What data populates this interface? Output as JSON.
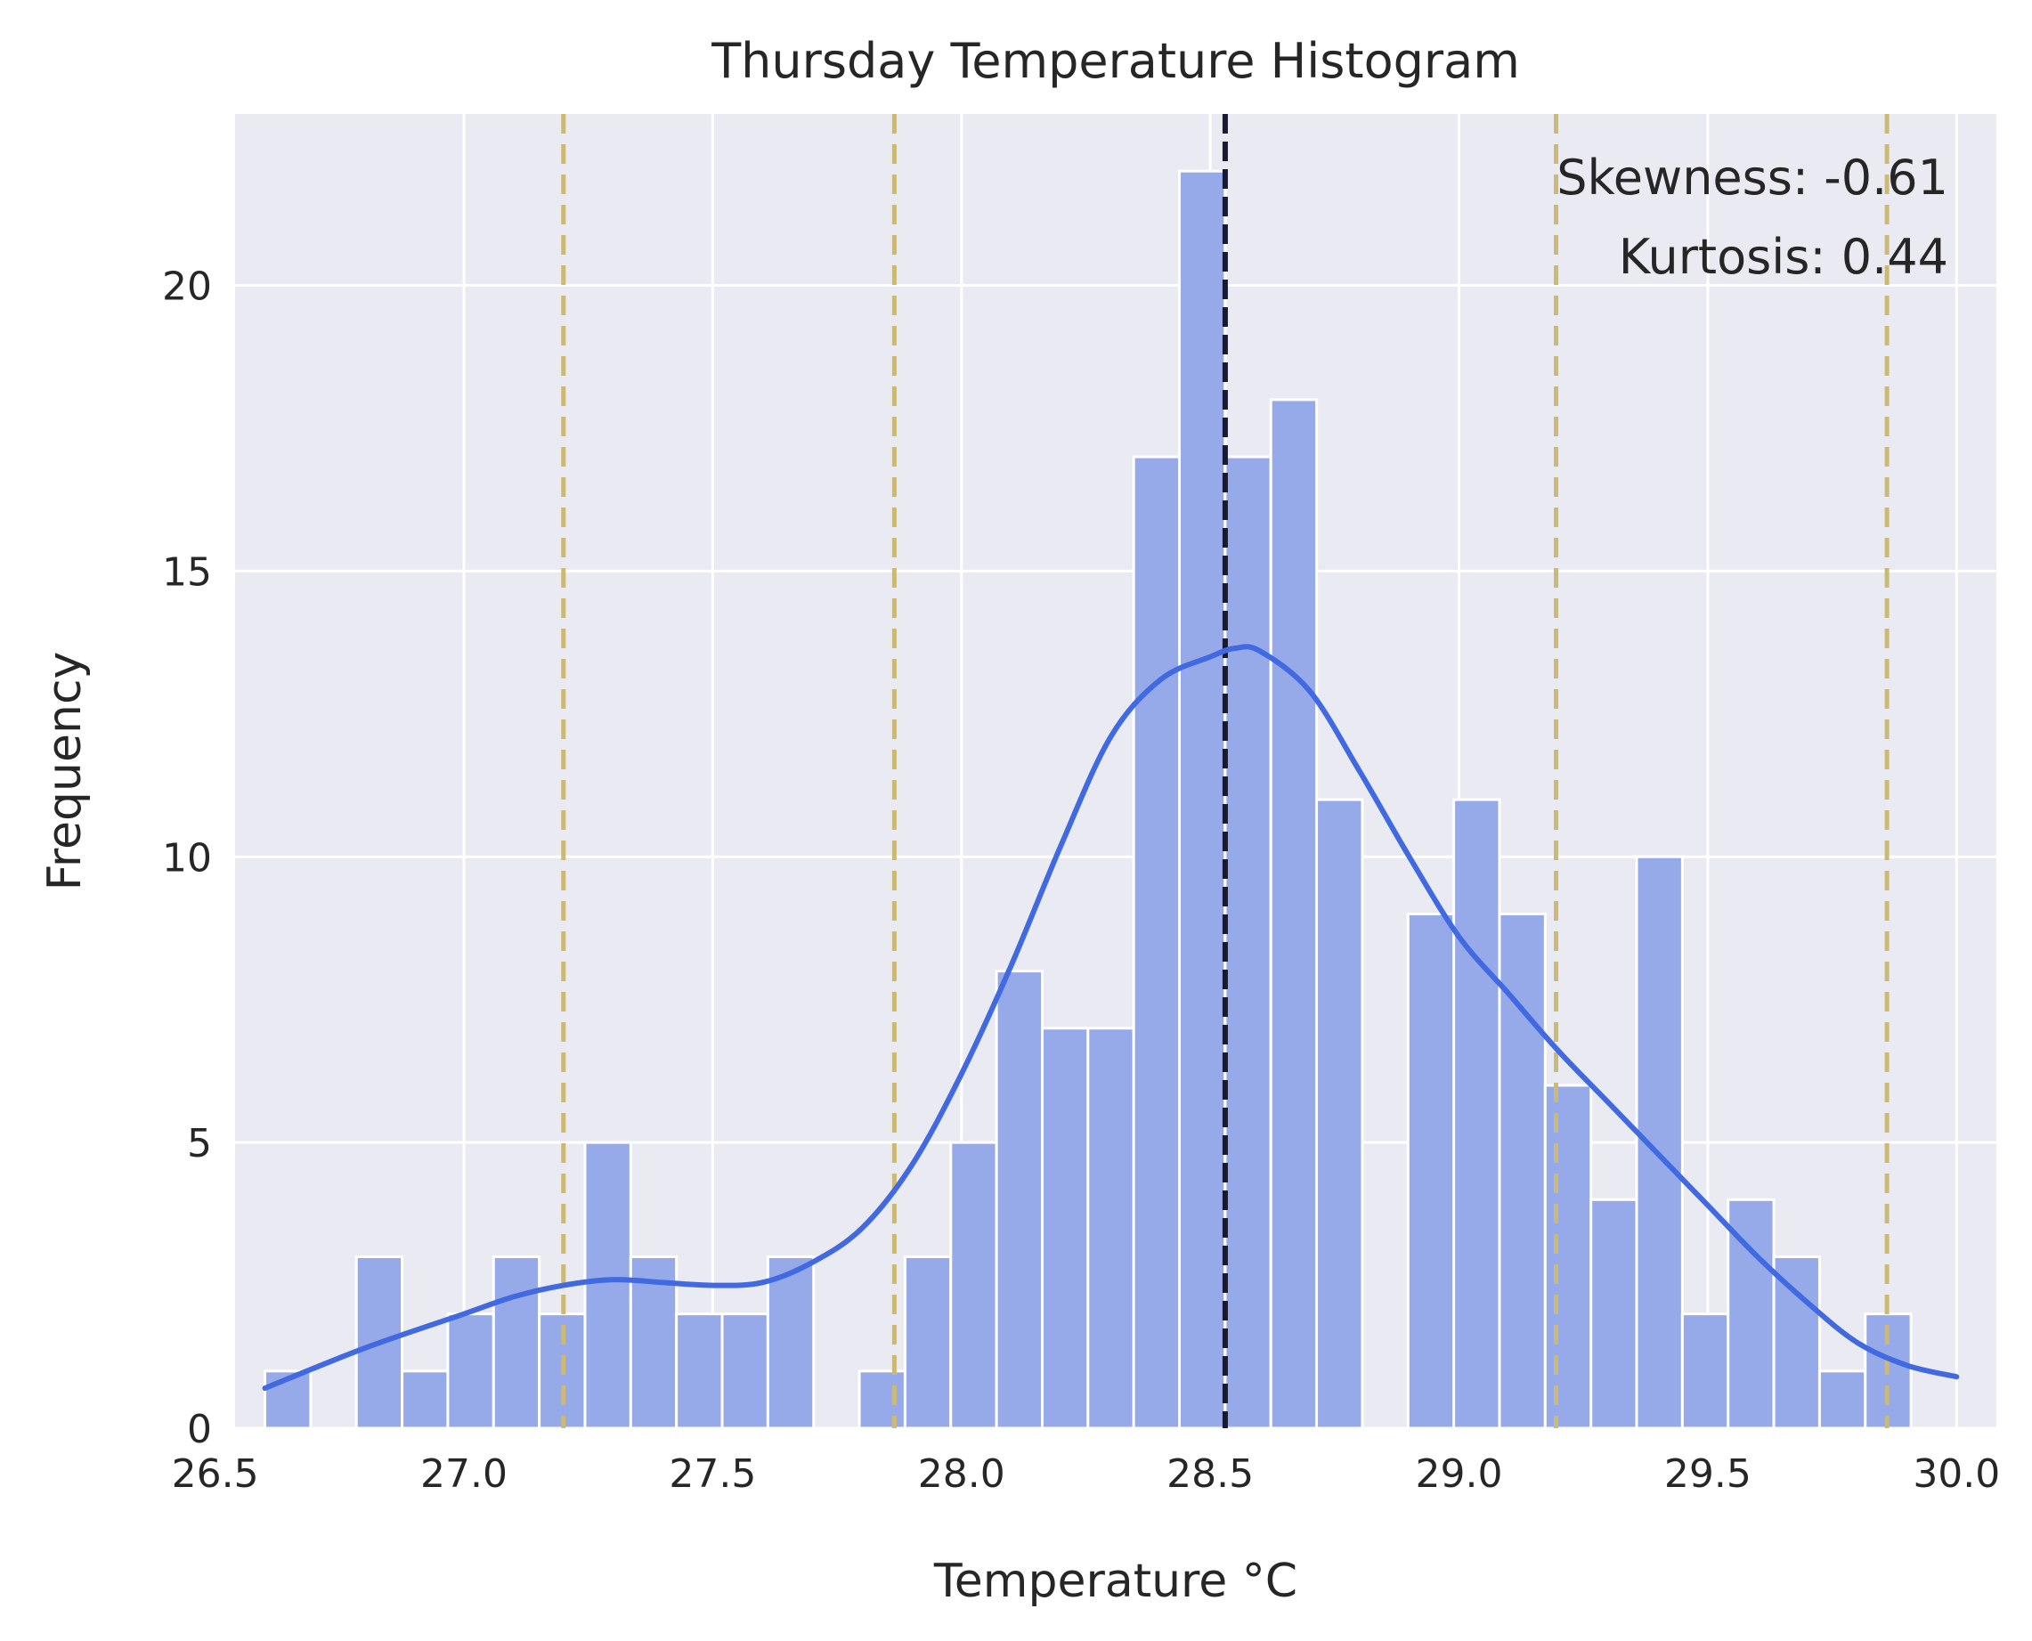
{
  "chart_data": {
    "type": "bar",
    "title": "Thursday Temperature Histogram",
    "xlabel": "Temperature °C",
    "ylabel": "Frequency",
    "xlim": [
      26.54,
      30.08
    ],
    "ylim": [
      0,
      23.0
    ],
    "x_ticks": [
      "26.5",
      "27.0",
      "27.5",
      "28.0",
      "28.5",
      "29.0",
      "29.5",
      "30.0"
    ],
    "y_ticks": [
      "0",
      "5",
      "10",
      "15",
      "20"
    ],
    "grid": true,
    "background_color": "#eaeaf2",
    "bar_color": "#96a9e8",
    "kde_color": "#4169e1",
    "bins": {
      "start": 26.6,
      "width": 0.0919,
      "counts": [
        1,
        0,
        3,
        1,
        2,
        3,
        2,
        5,
        3,
        2,
        2,
        3,
        0,
        1,
        3,
        5,
        8,
        7,
        7,
        17,
        22,
        17,
        18,
        11,
        0,
        9,
        11,
        9,
        6,
        4,
        10,
        2,
        4,
        3,
        1,
        2
      ]
    },
    "kde": {
      "x": [
        26.6,
        26.8,
        27.0,
        27.1,
        27.2,
        27.3,
        27.4,
        27.5,
        27.6,
        27.7,
        27.8,
        27.9,
        28.0,
        28.1,
        28.2,
        28.3,
        28.4,
        28.5,
        28.55,
        28.6,
        28.7,
        28.8,
        28.9,
        29.0,
        29.1,
        29.2,
        29.3,
        29.4,
        29.5,
        29.6,
        29.7,
        29.8,
        29.9,
        30.0
      ],
      "y": [
        0.7,
        1.4,
        2.0,
        2.3,
        2.5,
        2.6,
        2.55,
        2.5,
        2.55,
        2.9,
        3.5,
        4.6,
        6.2,
        8.1,
        10.2,
        12.1,
        13.1,
        13.5,
        13.65,
        13.6,
        12.9,
        11.5,
        10.0,
        8.6,
        7.6,
        6.6,
        5.7,
        4.8,
        3.9,
        3.0,
        2.2,
        1.5,
        1.1,
        0.9
      ]
    },
    "lines": [
      {
        "name": "mean",
        "x": 28.53,
        "color": "#1a1a2e",
        "style": "dashed"
      },
      {
        "name": "mean-2sd",
        "x": 27.2,
        "color": "#ccb974",
        "style": "dashed"
      },
      {
        "name": "mean-1sd",
        "x": 27.865,
        "color": "#ccb974",
        "style": "dashed"
      },
      {
        "name": "mean+1sd",
        "x": 29.195,
        "color": "#ccb974",
        "style": "dashed"
      },
      {
        "name": "mean+2sd",
        "x": 29.86,
        "color": "#ccb974",
        "style": "dashed"
      }
    ],
    "annotations": [
      "Skewness: -0.61",
      "Kurtosis: 0.44"
    ]
  }
}
